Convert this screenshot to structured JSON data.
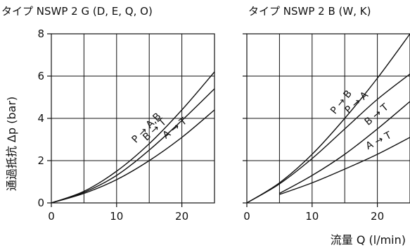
{
  "ylabel": "通過抵抗 Δp (bar)",
  "xlabel": "流量 Q (l/min)",
  "chart_data": [
    {
      "type": "line",
      "title": "タイプ NSWP 2 G (D, E, Q, O)",
      "xlim": [
        0,
        25
      ],
      "ylim": [
        0,
        8
      ],
      "x_ticks": [
        0,
        10,
        20
      ],
      "y_ticks": [
        0,
        2,
        4,
        6,
        8
      ],
      "grid": true,
      "series": [
        {
          "name": "P → A,B",
          "x": [
            0,
            5,
            10,
            15,
            20,
            25
          ],
          "y": [
            0,
            0.55,
            1.5,
            2.8,
            4.4,
            6.2
          ]
        },
        {
          "name": "B → T",
          "x": [
            0,
            5,
            10,
            15,
            20,
            25
          ],
          "y": [
            0,
            0.5,
            1.3,
            2.5,
            3.9,
            5.4
          ]
        },
        {
          "name": "A → T",
          "x": [
            0,
            5,
            10,
            15,
            20,
            25
          ],
          "y": [
            0,
            0.45,
            1.1,
            2.0,
            3.1,
            4.4
          ]
        }
      ]
    },
    {
      "type": "line",
      "title": "タイプ NSWP 2 B (W, K)",
      "xlim": [
        0,
        25
      ],
      "ylim": [
        0,
        8
      ],
      "x_ticks": [
        0,
        10,
        20
      ],
      "y_ticks": [
        0,
        2,
        4,
        6,
        8
      ],
      "grid": true,
      "series": [
        {
          "name": "P → B",
          "x": [
            0,
            5,
            10,
            15,
            20,
            25
          ],
          "y": [
            0,
            0.95,
            2.3,
            4.0,
            5.9,
            8.0
          ]
        },
        {
          "name": "P → A",
          "x": [
            0,
            5,
            10,
            15,
            20,
            25
          ],
          "y": [
            0,
            0.9,
            2.1,
            3.5,
            4.9,
            6.1
          ]
        },
        {
          "name": "B → T",
          "x": [
            5,
            10,
            15,
            20,
            25
          ],
          "y": [
            0.45,
            1.3,
            2.3,
            3.5,
            4.8
          ]
        },
        {
          "name": "A → T",
          "x": [
            5,
            10,
            15,
            20,
            25
          ],
          "y": [
            0.4,
            0.95,
            1.6,
            2.3,
            3.1
          ]
        }
      ]
    }
  ]
}
